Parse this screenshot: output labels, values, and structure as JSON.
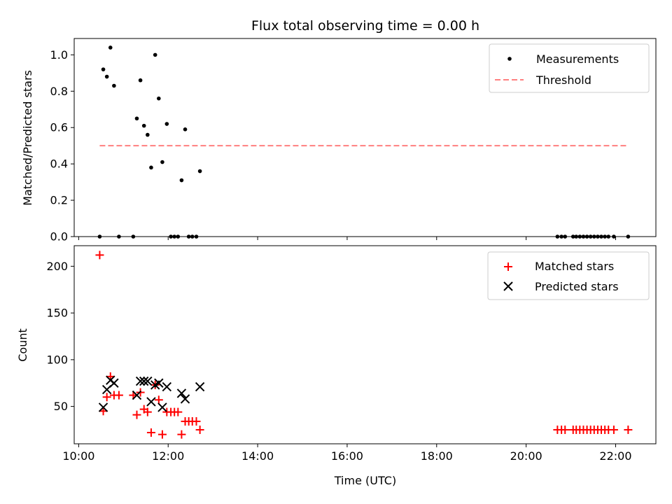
{
  "chart_data": [
    {
      "type": "scatter",
      "title": "Flux total observing time = 0.00 h",
      "xlabel": "",
      "ylabel": "Matched/Predicted stars",
      "xlim_hours": [
        9.9,
        22.9
      ],
      "ylim": [
        0,
        1.09
      ],
      "yticks": [
        0.0,
        0.2,
        0.4,
        0.6,
        0.8,
        1.0
      ],
      "ytick_labels": [
        "0.0",
        "0.2",
        "0.4",
        "0.6",
        "0.8",
        "1.0"
      ],
      "legend": {
        "position": "top-right"
      },
      "series": [
        {
          "name": "Measurements",
          "marker": "dot",
          "color": "#000000",
          "points": [
            [
              10.47,
              0.0
            ],
            [
              10.55,
              0.92
            ],
            [
              10.63,
              0.88
            ],
            [
              10.71,
              1.04
            ],
            [
              10.79,
              0.83
            ],
            [
              10.9,
              0.0
            ],
            [
              11.22,
              0.0
            ],
            [
              11.3,
              0.65
            ],
            [
              11.38,
              0.86
            ],
            [
              11.46,
              0.61
            ],
            [
              11.54,
              0.56
            ],
            [
              11.62,
              0.38
            ],
            [
              11.71,
              1.0
            ],
            [
              11.79,
              0.76
            ],
            [
              11.87,
              0.41
            ],
            [
              11.97,
              0.62
            ],
            [
              12.06,
              0.0
            ],
            [
              12.14,
              0.0
            ],
            [
              12.22,
              0.0
            ],
            [
              12.3,
              0.31
            ],
            [
              12.38,
              0.59
            ],
            [
              12.46,
              0.0
            ],
            [
              12.54,
              0.0
            ],
            [
              12.63,
              0.0
            ],
            [
              12.71,
              0.36
            ],
            [
              20.7,
              0.0
            ],
            [
              20.79,
              0.0
            ],
            [
              20.87,
              0.0
            ],
            [
              21.05,
              0.0
            ],
            [
              21.12,
              0.0
            ],
            [
              21.2,
              0.0
            ],
            [
              21.28,
              0.0
            ],
            [
              21.36,
              0.0
            ],
            [
              21.44,
              0.0
            ],
            [
              21.52,
              0.0
            ],
            [
              21.6,
              0.0
            ],
            [
              21.68,
              0.0
            ],
            [
              21.76,
              0.0
            ],
            [
              21.84,
              0.0
            ],
            [
              21.96,
              0.0
            ],
            [
              22.28,
              0.0
            ]
          ]
        },
        {
          "name": "Threshold",
          "marker": "dashed-line",
          "color": "#ff7f7f",
          "x": [
            10.47,
            22.28
          ],
          "y": [
            0.5,
            0.5
          ]
        }
      ]
    },
    {
      "type": "scatter",
      "title": "",
      "xlabel": "Time (UTC)",
      "ylabel": "Count",
      "xlim_hours": [
        9.9,
        22.9
      ],
      "ylim": [
        10,
        222
      ],
      "yticks": [
        50,
        100,
        150,
        200
      ],
      "ytick_labels": [
        "50",
        "100",
        "150",
        "200"
      ],
      "xticks_hours": [
        10,
        12,
        14,
        16,
        18,
        20,
        22
      ],
      "xtick_labels": [
        "10:00",
        "12:00",
        "14:00",
        "16:00",
        "18:00",
        "20:00",
        "22:00"
      ],
      "legend": {
        "position": "top-right"
      },
      "series": [
        {
          "name": "Matched stars",
          "marker": "plus",
          "color": "#ff0000",
          "points": [
            [
              10.47,
              212
            ],
            [
              10.55,
              45
            ],
            [
              10.63,
              60
            ],
            [
              10.71,
              82
            ],
            [
              10.79,
              62
            ],
            [
              10.9,
              62
            ],
            [
              11.22,
              62
            ],
            [
              11.3,
              41
            ],
            [
              11.38,
              65
            ],
            [
              11.46,
              47
            ],
            [
              11.54,
              44
            ],
            [
              11.62,
              22
            ],
            [
              11.71,
              73
            ],
            [
              11.79,
              57
            ],
            [
              11.87,
              20
            ],
            [
              11.97,
              44
            ],
            [
              12.06,
              44
            ],
            [
              12.14,
              44
            ],
            [
              12.22,
              44
            ],
            [
              12.3,
              20
            ],
            [
              12.38,
              34
            ],
            [
              12.46,
              34
            ],
            [
              12.54,
              34
            ],
            [
              12.63,
              34
            ],
            [
              12.71,
              25
            ],
            [
              20.7,
              25
            ],
            [
              20.79,
              25
            ],
            [
              20.87,
              25
            ],
            [
              21.05,
              25
            ],
            [
              21.12,
              25
            ],
            [
              21.2,
              25
            ],
            [
              21.28,
              25
            ],
            [
              21.36,
              25
            ],
            [
              21.44,
              25
            ],
            [
              21.52,
              25
            ],
            [
              21.6,
              25
            ],
            [
              21.68,
              25
            ],
            [
              21.76,
              25
            ],
            [
              21.84,
              25
            ],
            [
              21.96,
              25
            ],
            [
              22.28,
              25
            ]
          ]
        },
        {
          "name": "Predicted stars",
          "marker": "x",
          "color": "#000000",
          "points": [
            [
              10.55,
              49
            ],
            [
              10.63,
              68
            ],
            [
              10.71,
              78
            ],
            [
              10.79,
              75
            ],
            [
              11.3,
              62
            ],
            [
              11.38,
              77
            ],
            [
              11.46,
              77
            ],
            [
              11.54,
              77
            ],
            [
              11.62,
              55
            ],
            [
              11.71,
              73
            ],
            [
              11.79,
              75
            ],
            [
              11.87,
              49
            ],
            [
              11.97,
              71
            ],
            [
              12.3,
              64
            ],
            [
              12.38,
              58
            ],
            [
              12.71,
              71
            ]
          ]
        }
      ]
    }
  ]
}
